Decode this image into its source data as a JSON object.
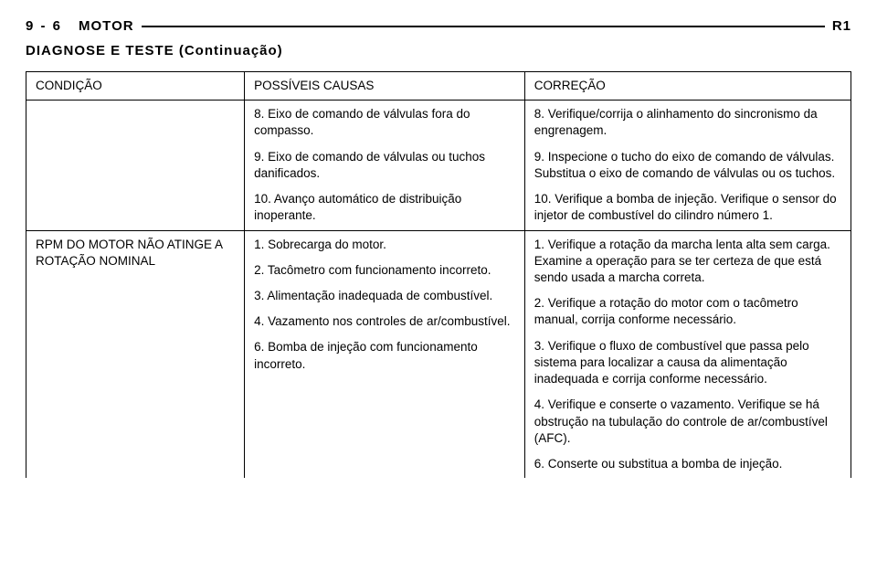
{
  "header": {
    "page_num": "9 - 6",
    "title": "MOTOR",
    "right": "R1"
  },
  "subtitle": "DIAGNOSE E TESTE (Continuação)",
  "columns": {
    "c0": "CONDIÇÃO",
    "c1": "POSSÍVEIS CAUSAS",
    "c2": "CORREÇÃO"
  },
  "row1": {
    "condition": "",
    "causes": [
      "8. Eixo de comando de válvulas fora do compasso.",
      "9. Eixo de comando de válvulas ou tuchos danificados.",
      "10. Avanço automático de distribuição inoperante."
    ],
    "corrections": [
      "8. Verifique/corrija o alinhamento do sincronismo da engrenagem.",
      "9. Inspecione o tucho do eixo de comando de válvulas. Substitua o eixo de comando de válvulas ou os tuchos.",
      "10. Verifique a bomba de injeção. Verifique o sensor do injetor de combustível do cilindro número 1."
    ]
  },
  "row2": {
    "condition": "RPM DO MOTOR NÃO ATINGE A ROTAÇÃO NOMINAL",
    "causes": [
      "1. Sobrecarga do motor.",
      "2. Tacômetro com funcionamento incorreto.",
      "3. Alimentação inadequada de combustível.",
      "4. Vazamento nos controles de ar/combustível.",
      "6. Bomba de injeção com funcionamento incorreto."
    ],
    "corrections": [
      "1. Verifique a rotação da marcha lenta alta sem carga. Examine a operação para se ter certeza de que está sendo usada a marcha correta.",
      "2. Verifique a rotação do motor com o tacômetro manual, corrija conforme necessário.",
      "3. Verifique o fluxo de combustível que passa pelo sistema para localizar a causa da alimentação inadequada e corrija conforme necessário.",
      "4. Verifique e conserte o vazamento. Verifique se há obstrução na tubulação do controle de ar/combustível (AFC).",
      "6. Conserte ou substitua a bomba de injeção."
    ]
  }
}
